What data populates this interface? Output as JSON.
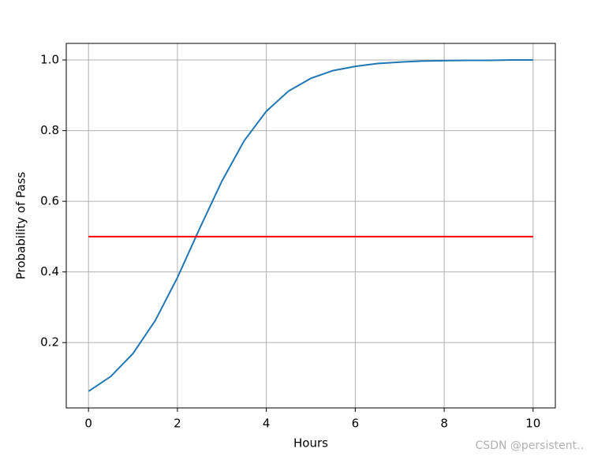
{
  "chart_data": {
    "type": "line",
    "x_label": "Hours",
    "y_label": "Probability of Pass",
    "x": [
      0,
      0.5,
      1,
      1.5,
      2,
      2.5,
      3,
      3.5,
      4,
      4.5,
      5,
      5.5,
      6,
      6.5,
      7,
      7.5,
      8,
      8.5,
      9,
      9.5,
      10
    ],
    "series": [
      {
        "color": "#1f77b4",
        "values": [
          0.062,
          0.104,
          0.169,
          0.262,
          0.384,
          0.523,
          0.657,
          0.771,
          0.855,
          0.912,
          0.948,
          0.97,
          0.982,
          0.99,
          0.994,
          0.997,
          0.998,
          0.999,
          0.999,
          1.0,
          1.0
        ]
      },
      {
        "color": "#ff0000",
        "x": [
          0,
          10
        ],
        "values": [
          0.5,
          0.5
        ]
      }
    ],
    "xlim": [
      -0.5,
      10.5
    ],
    "ylim": [
      0.015,
      1.047
    ],
    "xticks": [
      0,
      2,
      4,
      6,
      8,
      10
    ],
    "yticks": [
      0.2,
      0.4,
      0.6,
      0.8,
      {
        "value": 1,
        "label": "1.0"
      }
    ],
    "grid": true,
    "watermark": "CSDN @persistent.."
  }
}
